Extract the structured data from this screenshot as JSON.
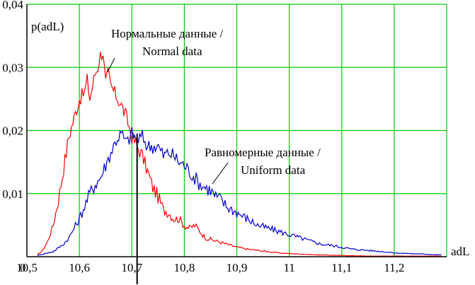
{
  "chart_data": {
    "type": "line",
    "ylabel": "p(adL)",
    "xlabel": "adL",
    "xlim": [
      10.5,
      11.3
    ],
    "ylim": [
      0,
      0.04
    ],
    "grid": true,
    "x_ticks": [
      {
        "value": 10.5,
        "label": "10,5"
      },
      {
        "value": 10.6,
        "label": "10,6"
      },
      {
        "value": 10.7,
        "label": "10,7"
      },
      {
        "value": 10.8,
        "label": "10,8"
      },
      {
        "value": 10.9,
        "label": "10,9"
      },
      {
        "value": 11.0,
        "label": "11"
      },
      {
        "value": 11.1,
        "label": "11,1"
      },
      {
        "value": 11.2,
        "label": "11,2"
      }
    ],
    "x_origin_label": "0",
    "y_ticks": [
      {
        "value": 0.01,
        "label": "0,01"
      },
      {
        "value": 0.02,
        "label": "0,02"
      },
      {
        "value": 0.03,
        "label": "0,03"
      },
      {
        "value": 0.04,
        "label": "0,04"
      }
    ],
    "vline_x": 10.71,
    "series": [
      {
        "name": "Нормальные данные / Normal data",
        "color": "#ff0000",
        "x": [
          10.52,
          10.53,
          10.54,
          10.55,
          10.56,
          10.57,
          10.58,
          10.59,
          10.6,
          10.61,
          10.615,
          10.62,
          10.63,
          10.635,
          10.64,
          10.645,
          10.65,
          10.655,
          10.66,
          10.67,
          10.68,
          10.69,
          10.7,
          10.71,
          10.72,
          10.73,
          10.74,
          10.75,
          10.76,
          10.77,
          10.78,
          10.79,
          10.8,
          10.81,
          10.82,
          10.84,
          10.86,
          10.88,
          10.9,
          10.92,
          10.94,
          10.96,
          10.98,
          11.0,
          11.05,
          11.1,
          11.15,
          11.2,
          11.25,
          11.29
        ],
        "y": [
          0.0003,
          0.001,
          0.0025,
          0.005,
          0.009,
          0.014,
          0.019,
          0.022,
          0.025,
          0.026,
          0.028,
          0.025,
          0.029,
          0.03,
          0.032,
          0.0325,
          0.0275,
          0.029,
          0.027,
          0.0255,
          0.024,
          0.022,
          0.019,
          0.0175,
          0.016,
          0.0135,
          0.011,
          0.0095,
          0.0075,
          0.007,
          0.006,
          0.006,
          0.005,
          0.0045,
          0.005,
          0.003,
          0.0025,
          0.002,
          0.0015,
          0.0012,
          0.001,
          0.0008,
          0.0006,
          0.0005,
          0.0003,
          0.0002,
          0.0001,
          0.0001,
          0.0001,
          0.0001
        ]
      },
      {
        "name": "Равномерные данные / Uniform data",
        "color": "#0000cc",
        "x": [
          10.52,
          10.55,
          10.57,
          10.58,
          10.59,
          10.6,
          10.61,
          10.62,
          10.63,
          10.64,
          10.65,
          10.66,
          10.67,
          10.68,
          10.69,
          10.7,
          10.71,
          10.72,
          10.73,
          10.74,
          10.75,
          10.76,
          10.77,
          10.78,
          10.79,
          10.8,
          10.81,
          10.82,
          10.83,
          10.84,
          10.85,
          10.86,
          10.87,
          10.88,
          10.9,
          10.92,
          10.94,
          10.96,
          10.98,
          11.0,
          11.02,
          11.04,
          11.06,
          11.08,
          11.1,
          11.12,
          11.15,
          11.18,
          11.2,
          11.23,
          11.26,
          11.29
        ],
        "y": [
          0.0002,
          0.0008,
          0.002,
          0.003,
          0.0045,
          0.006,
          0.008,
          0.01,
          0.0115,
          0.0125,
          0.0145,
          0.0165,
          0.0185,
          0.0195,
          0.018,
          0.0195,
          0.0185,
          0.019,
          0.0175,
          0.0175,
          0.0175,
          0.016,
          0.0165,
          0.016,
          0.015,
          0.0145,
          0.0135,
          0.0125,
          0.0115,
          0.011,
          0.0105,
          0.0095,
          0.009,
          0.008,
          0.007,
          0.006,
          0.005,
          0.0045,
          0.004,
          0.0035,
          0.003,
          0.0025,
          0.002,
          0.0018,
          0.0015,
          0.0012,
          0.001,
          0.0008,
          0.0006,
          0.0005,
          0.0004,
          0.0003
        ]
      }
    ],
    "annotations": [
      {
        "series": 0,
        "line1": "Нормальные данные /",
        "line2": "Normal data"
      },
      {
        "series": 1,
        "line1": "Равномерные данные /",
        "line2": "Uniform data"
      }
    ]
  }
}
